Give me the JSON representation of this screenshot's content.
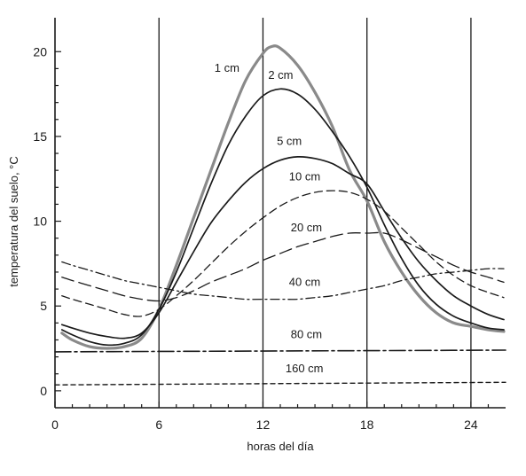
{
  "chart_data": {
    "type": "line",
    "title": "",
    "xlabel": "horas del día",
    "ylabel": "temperatura del suelo, °C",
    "xlim": [
      0,
      26
    ],
    "ylim": [
      -1,
      22
    ],
    "x_ticks": [
      0,
      6,
      12,
      18,
      24
    ],
    "y_ticks": [
      0,
      5,
      10,
      15,
      20
    ],
    "vertical_lines_at": [
      6,
      12,
      18,
      24
    ],
    "grid": false,
    "series": [
      {
        "name": "1 cm",
        "style": "gray-thick",
        "color": "#8a8a8a",
        "x": [
          0.4,
          1,
          2,
          3,
          4,
          5,
          6,
          7,
          8,
          9,
          10,
          11,
          12,
          12.5,
          13,
          14,
          15,
          16,
          17,
          18,
          19,
          20,
          21,
          22,
          23,
          24,
          25,
          25.9
        ],
        "y": [
          3.4,
          3.0,
          2.6,
          2.5,
          2.6,
          3.1,
          4.8,
          7.4,
          10.2,
          13.0,
          15.8,
          18.3,
          19.9,
          20.3,
          20.2,
          19.2,
          17.6,
          15.6,
          13.0,
          11.2,
          8.8,
          7.0,
          5.6,
          4.6,
          4.0,
          3.8,
          3.6,
          3.5
        ]
      },
      {
        "name": "2 cm",
        "style": "solid",
        "color": "#1a1a1a",
        "x": [
          0.4,
          1,
          2,
          3,
          4,
          5,
          6,
          7,
          8,
          9,
          10,
          11,
          12,
          13,
          14,
          15,
          16,
          17,
          18,
          19,
          20,
          21,
          22,
          23,
          24,
          25,
          25.9
        ],
        "y": [
          3.6,
          3.3,
          2.9,
          2.7,
          2.8,
          3.3,
          4.8,
          7.0,
          9.6,
          12.2,
          14.5,
          16.2,
          17.4,
          17.8,
          17.5,
          16.6,
          15.3,
          13.8,
          12.0,
          9.8,
          7.8,
          6.2,
          5.1,
          4.4,
          4.0,
          3.7,
          3.6
        ]
      },
      {
        "name": "5 cm",
        "style": "solid",
        "color": "#1a1a1a",
        "x": [
          0.4,
          1,
          2,
          3,
          4,
          5,
          6,
          7,
          8,
          9,
          10,
          11,
          12,
          13,
          14,
          15,
          16,
          17,
          18,
          19,
          20,
          21,
          22,
          23,
          24,
          25,
          25.9
        ],
        "y": [
          3.9,
          3.7,
          3.4,
          3.2,
          3.1,
          3.4,
          4.6,
          6.4,
          8.2,
          9.9,
          11.2,
          12.3,
          13.1,
          13.6,
          13.8,
          13.7,
          13.4,
          12.8,
          12.2,
          10.6,
          9.0,
          7.6,
          6.5,
          5.6,
          5.0,
          4.5,
          4.2
        ]
      },
      {
        "name": "10 cm",
        "style": "dashed",
        "color": "#1a1a1a",
        "x": [
          0.4,
          1,
          2,
          3,
          4,
          5,
          6,
          7,
          8,
          9,
          10,
          11,
          12,
          13,
          14,
          15,
          16,
          17,
          18,
          19,
          20,
          21,
          22,
          23,
          24,
          25,
          25.9
        ],
        "y": [
          5.6,
          5.4,
          5.1,
          4.8,
          4.5,
          4.4,
          4.8,
          5.6,
          6.5,
          7.5,
          8.5,
          9.4,
          10.2,
          10.9,
          11.4,
          11.7,
          11.8,
          11.7,
          11.3,
          10.6,
          9.6,
          8.6,
          7.6,
          6.8,
          6.2,
          5.8,
          5.5
        ]
      },
      {
        "name": "20 cm",
        "style": "long-dash",
        "color": "#1a1a1a",
        "x": [
          0.4,
          1,
          2,
          3,
          4,
          5,
          6,
          7,
          8,
          9,
          10,
          11,
          12,
          13,
          14,
          15,
          16,
          17,
          18,
          19,
          20,
          21,
          22,
          23,
          24,
          25,
          25.9
        ],
        "y": [
          6.7,
          6.5,
          6.2,
          5.9,
          5.6,
          5.4,
          5.3,
          5.5,
          5.9,
          6.4,
          6.8,
          7.2,
          7.7,
          8.1,
          8.5,
          8.8,
          9.1,
          9.3,
          9.3,
          9.3,
          8.9,
          8.4,
          7.9,
          7.4,
          7.0,
          6.7,
          6.4
        ]
      },
      {
        "name": "40 cm",
        "style": "dash-dot",
        "color": "#1a1a1a",
        "x": [
          0.4,
          1,
          2,
          3,
          4,
          5,
          6,
          7,
          8,
          9,
          10,
          11,
          12,
          13,
          14,
          15,
          16,
          17,
          18,
          19,
          20,
          21,
          22,
          23,
          24,
          25,
          25.9
        ],
        "y": [
          7.6,
          7.4,
          7.1,
          6.8,
          6.5,
          6.3,
          6.1,
          5.9,
          5.7,
          5.6,
          5.5,
          5.4,
          5.4,
          5.4,
          5.4,
          5.5,
          5.6,
          5.8,
          6.0,
          6.2,
          6.5,
          6.7,
          6.9,
          7.0,
          7.1,
          7.2,
          7.2
        ]
      },
      {
        "name": "80 cm",
        "style": "long-dash-dot",
        "color": "#1a1a1a",
        "x": [
          0,
          26
        ],
        "y": [
          2.3,
          2.4
        ]
      },
      {
        "name": "160 cm",
        "style": "short-dash",
        "color": "#1a1a1a",
        "x": [
          0,
          26
        ],
        "y": [
          0.35,
          0.5
        ]
      }
    ],
    "annotations": [
      {
        "text": "1 cm",
        "x": 9.2,
        "y": 18.8
      },
      {
        "text": "2 cm",
        "x": 12.3,
        "y": 18.4
      },
      {
        "text": "5 cm",
        "x": 12.8,
        "y": 14.5
      },
      {
        "text": "10 cm",
        "x": 13.5,
        "y": 12.4
      },
      {
        "text": "20 cm",
        "x": 13.6,
        "y": 9.4
      },
      {
        "text": "40 cm",
        "x": 13.5,
        "y": 6.2
      },
      {
        "text": "80 cm",
        "x": 13.6,
        "y": 3.1
      },
      {
        "text": "160 cm",
        "x": 13.3,
        "y": 1.1
      }
    ]
  }
}
